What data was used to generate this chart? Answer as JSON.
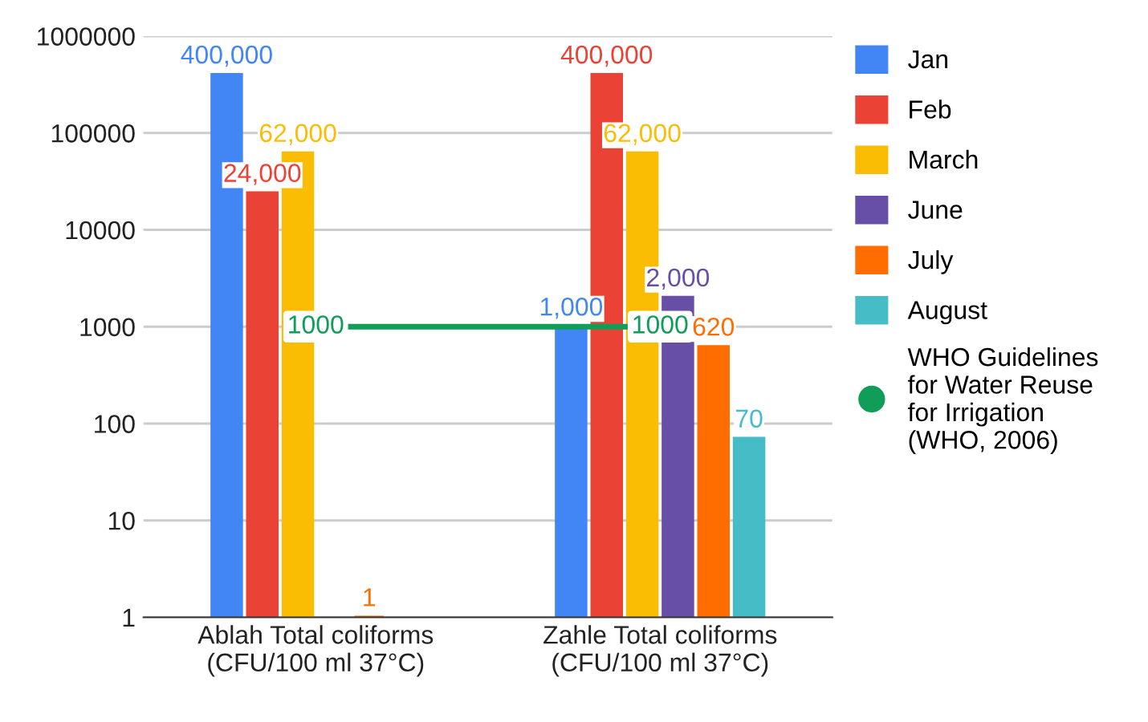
{
  "chart_data": {
    "type": "bar",
    "categories": [
      "Ablah Total coliforms\n(CFU/100 ml 37°C)",
      "Zahle Total coliforms\n(CFU/100 ml 37°C)"
    ],
    "series": [
      {
        "name": "Jan",
        "color": "#4285f4",
        "values": [
          400000,
          1000
        ],
        "value_labels": [
          "400,000",
          "1,000"
        ]
      },
      {
        "name": "Feb",
        "color": "#ea4335",
        "values": [
          24000,
          400000
        ],
        "value_labels": [
          "24,000",
          "400,000"
        ]
      },
      {
        "name": "March",
        "color": "#fbbc04",
        "values": [
          62000,
          62000
        ],
        "value_labels": [
          "62,000",
          "62,000"
        ]
      },
      {
        "name": "June",
        "color": "#674ea7",
        "values": [
          null,
          2000
        ],
        "value_labels": [
          null,
          "2,000"
        ]
      },
      {
        "name": "July",
        "color": "#ff6d01",
        "values": [
          1,
          620
        ],
        "value_labels": [
          "1",
          "620"
        ]
      },
      {
        "name": "August",
        "color": "#46bdc6",
        "values": [
          null,
          70
        ],
        "value_labels": [
          null,
          "70"
        ]
      },
      {
        "name": "WHO Guidelines\nfor Water Reuse\nfor Irrigation\n(WHO, 2006)",
        "color": "#0f9d58",
        "type": "line",
        "marker": "circle",
        "values": [
          1000,
          1000
        ],
        "value_labels": [
          "1000",
          "1000"
        ]
      }
    ],
    "log": "y",
    "ylim": [
      1,
      1000000
    ],
    "yticks": [
      1,
      10,
      100,
      1000,
      10000,
      100000,
      1000000
    ],
    "grid": "y",
    "legend": "right"
  }
}
